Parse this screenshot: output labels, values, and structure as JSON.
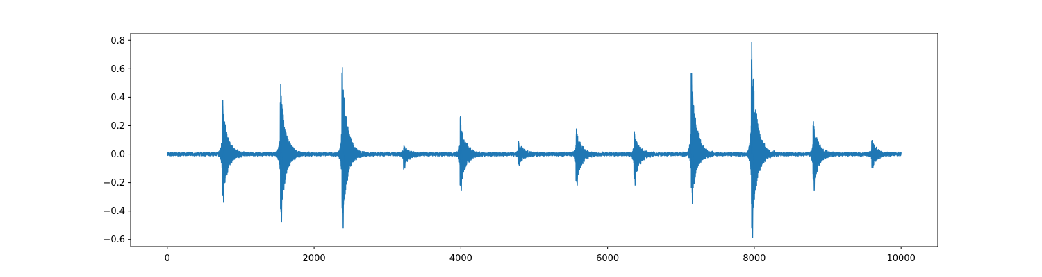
{
  "chart_data": {
    "type": "line",
    "title": "",
    "xlabel": "",
    "ylabel": "",
    "xlim": [
      -500,
      10500
    ],
    "ylim": [
      -0.65,
      0.85
    ],
    "x_ticks": [
      0,
      2000,
      4000,
      6000,
      8000,
      10000
    ],
    "x_tick_labels": [
      "0",
      "2000",
      "4000",
      "6000",
      "8000",
      "10000"
    ],
    "y_ticks": [
      -0.6,
      -0.4,
      -0.2,
      0.0,
      0.2,
      0.4,
      0.6,
      0.8
    ],
    "y_tick_labels": [
      "−0.6",
      "−0.4",
      "−0.2",
      "0.0",
      "0.2",
      "0.4",
      "0.6",
      "0.8"
    ],
    "grid": false,
    "legend": "none",
    "colors": {
      "line": "#1f77b4"
    },
    "series": [
      {
        "x_range": [
          0,
          10000
        ],
        "baseline_amplitude": 0.015,
        "bursts": [
          {
            "x": 750,
            "max": 0.38,
            "min": -0.34
          },
          {
            "x": 1540,
            "max": 0.49,
            "min": -0.48
          },
          {
            "x": 2380,
            "max": 0.61,
            "min": -0.52
          },
          {
            "x": 3220,
            "max": 0.06,
            "min": -0.1
          },
          {
            "x": 3990,
            "max": 0.27,
            "min": -0.26
          },
          {
            "x": 4780,
            "max": 0.09,
            "min": -0.08
          },
          {
            "x": 5570,
            "max": 0.18,
            "min": -0.22
          },
          {
            "x": 6360,
            "max": 0.16,
            "min": -0.22
          },
          {
            "x": 7140,
            "max": 0.57,
            "min": -0.35
          },
          {
            "x": 7960,
            "max": 0.79,
            "min": -0.59
          },
          {
            "x": 8800,
            "max": 0.23,
            "min": -0.26
          },
          {
            "x": 9600,
            "max": 0.1,
            "min": -0.1
          }
        ]
      }
    ]
  }
}
